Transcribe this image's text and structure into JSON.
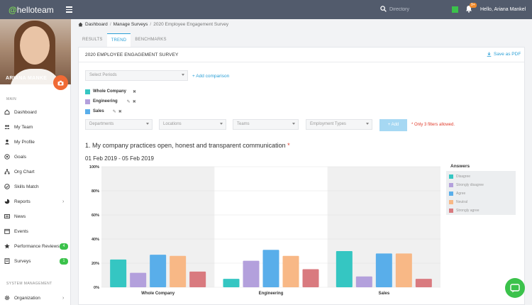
{
  "app": {
    "logo_text": "helloteam",
    "greeting": "Hello, Ariana Mankel",
    "notification_badge": "9+",
    "search_placeholder": "Directory"
  },
  "sidebar": {
    "user_name": "ARIANA MANKE",
    "main_heading": "MAIN",
    "items": [
      {
        "label": "Dashboard",
        "icon": "home-icon"
      },
      {
        "label": "My Team",
        "icon": "team-icon"
      },
      {
        "label": "My Profile",
        "icon": "user-icon"
      },
      {
        "label": "Goals",
        "icon": "goal-icon"
      },
      {
        "label": "Org Chart",
        "icon": "org-chart-icon"
      },
      {
        "label": "Skills Match",
        "icon": "skills-icon"
      },
      {
        "label": "Reports",
        "icon": "reports-icon",
        "chevron": "›"
      },
      {
        "label": "News",
        "icon": "news-icon"
      },
      {
        "label": "Events",
        "icon": "calendar-icon"
      },
      {
        "label": "Performance Reviews",
        "icon": "star-icon",
        "badge": "4"
      },
      {
        "label": "Surveys",
        "icon": "survey-icon",
        "badge": "1"
      }
    ],
    "system_heading": "SYSTEM MANAGEMENT",
    "system_items": [
      {
        "label": "Organization",
        "icon": "gear-icon",
        "chevron": "›"
      }
    ]
  },
  "breadcrumb": {
    "home": "Dashboard",
    "section": "Manage Surveys",
    "current": "2020 Employee Engagement Survey",
    "sep": "/"
  },
  "tabs": [
    "RESULTS",
    "TREND",
    "BENCHMARKS"
  ],
  "panel": {
    "title": "2020 EMPLOYEE ENGAGEMENT SURVEY",
    "save_pdf": "Save as PDF",
    "select_periods": "Select Periods",
    "add_comparison": "+ Add comparison",
    "comparisons": [
      {
        "name": "Whole Company",
        "color": "#35c6c2",
        "edit": "",
        "remove": "✖"
      },
      {
        "name": "Engineering",
        "color": "#b3a0dc",
        "edit": "✎",
        "remove": "✖"
      },
      {
        "name": "Sales",
        "color": "#59aeea",
        "edit": "✎",
        "remove": "✖"
      }
    ],
    "filters": [
      "Departments",
      "Locations",
      "Teams",
      "Employment Types"
    ],
    "add_button": "+ Add",
    "filter_warning": "* Only 3 filters allowed.",
    "question": "1. My company practices open, honest and transparent communication",
    "question_required": "*",
    "date_range": "01 Feb 2019 - 05 Feb 2019",
    "legend_title": "Answers"
  },
  "chart_data": {
    "type": "bar",
    "categories": [
      "Whole Company",
      "Engineering",
      "Sales"
    ],
    "series": [
      {
        "name": "Disagree",
        "color": "#35c6c2",
        "values": [
          23,
          7,
          30
        ]
      },
      {
        "name": "Strongly disagree",
        "color": "#b3a0dc",
        "values": [
          12,
          22,
          9
        ]
      },
      {
        "name": "Agree",
        "color": "#59aeea",
        "values": [
          27,
          31,
          28
        ]
      },
      {
        "name": "Neutral",
        "color": "#f8b886",
        "values": [
          26,
          26,
          28
        ]
      },
      {
        "name": "Strongly agree",
        "color": "#d97a7f",
        "values": [
          13,
          15,
          7
        ]
      }
    ],
    "yticks": [
      "0%",
      "20%",
      "40%",
      "60%",
      "80%",
      "100%"
    ],
    "ylim": [
      0,
      100
    ],
    "grid": true,
    "legend_position": "right"
  }
}
